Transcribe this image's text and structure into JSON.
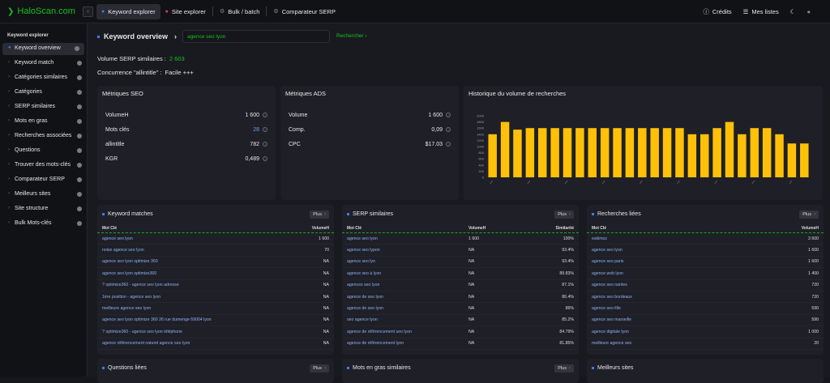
{
  "app": {
    "logo": "HaloScan.com"
  },
  "topnav": {
    "tabs": [
      {
        "label": "Keyword explorer",
        "active": true
      },
      {
        "label": "Site explorer"
      },
      {
        "label": "Bulk / batch"
      },
      {
        "label": "Comparateur SERP"
      }
    ],
    "credits": "Crédits",
    "lists": "Mes listes"
  },
  "sidebar": {
    "title": "Keyword explorer",
    "items": [
      {
        "label": "Keyword overview",
        "active": true
      },
      {
        "label": "Keyword match"
      },
      {
        "label": "Catégories similaires"
      },
      {
        "label": "Catégories"
      },
      {
        "label": "SERP similaires"
      },
      {
        "label": "Mots en gras"
      },
      {
        "label": "Recherches associées"
      },
      {
        "label": "Questions"
      },
      {
        "label": "Trouver des mots-clés"
      },
      {
        "label": "Comparateur SERP"
      },
      {
        "label": "Meilleurs sites"
      },
      {
        "label": "Site structure"
      },
      {
        "label": "Bulk Mots-clés"
      }
    ]
  },
  "header": {
    "title": "Keyword overview",
    "search_value": "agence seo lyon",
    "search_button": "Rechercher"
  },
  "summary": {
    "serp_label": "Volume SERP similaires :",
    "serp_value": "2 603",
    "comp_label": "Concurrence \"allintitle\" :",
    "comp_value": "Facile +++"
  },
  "seo": {
    "title": "Métriques SEO",
    "rows": [
      {
        "k": "VolumeH",
        "v": "1 600"
      },
      {
        "k": "Mots clés",
        "v": "28"
      },
      {
        "k": "allintitle",
        "v": "782"
      },
      {
        "k": "KGR",
        "v": "0,489"
      }
    ]
  },
  "ads": {
    "title": "Métriques ADS",
    "rows": [
      {
        "k": "Volume",
        "v": "1 600"
      },
      {
        "k": "Comp.",
        "v": "0,09"
      },
      {
        "k": "CPC",
        "v": "$17.03"
      }
    ]
  },
  "history": {
    "title": "Historique du volume de recherches"
  },
  "chart_data": {
    "type": "bar",
    "title": "Historique du volume de recherches",
    "ylim": [
      0,
      2000
    ],
    "yticks": [
      0,
      200,
      400,
      600,
      800,
      1000,
      1200,
      1400,
      1600,
      1800,
      2000
    ],
    "values": [
      1400,
      1800,
      1550,
      1600,
      1600,
      1600,
      1600,
      1600,
      1600,
      1600,
      1600,
      1600,
      1600,
      1600,
      1600,
      1600,
      1400,
      1400,
      1600,
      1800,
      1400,
      1600,
      1600,
      1400,
      1100,
      1100
    ],
    "color": "#ffc107"
  },
  "kw_matches": {
    "title": "Keyword matches",
    "plus": "Plus",
    "head": [
      "Mot Clé",
      "VolumeH"
    ],
    "rows": [
      [
        "agence seo lyon",
        "1 600"
      ],
      [
        "noise agence seo lyon",
        "70"
      ],
      [
        "agence seo lyon optimize 360",
        "NA"
      ],
      [
        "agence seo lyon optimize360",
        "NA"
      ],
      [
        "? optimize360 - agence seo lyon adresse",
        "NA"
      ],
      [
        "1ère position - agence seo lyon",
        "NA"
      ],
      [
        "meilleure agence seo lyon",
        "NA"
      ],
      [
        "agence seo lyon optimize 360 26 rue dumenge 69004 lyon",
        "NA"
      ],
      [
        "? optimize360 - agence seo lyon téléphone",
        "NA"
      ],
      [
        "agence référencement naturel agence seo lyon",
        "NA"
      ]
    ]
  },
  "serp_sim": {
    "title": "SERP similaires",
    "plus": "Plus",
    "head": [
      "Mot Clé",
      "VolumeH",
      "Similarité"
    ],
    "rows": [
      [
        "agence seo lyon",
        "1 600",
        "100%"
      ],
      [
        "agence seo lypon",
        "NA",
        "93.4%"
      ],
      [
        "agence seo lyo",
        "NA",
        "93.4%"
      ],
      [
        "agence seo à lyon",
        "NA",
        "89.83%"
      ],
      [
        "agences seo lyon",
        "NA",
        "87.1%"
      ],
      [
        "agence de seo lyon",
        "NA",
        "86.4%"
      ],
      [
        "agence de seo lyon",
        "NA",
        "86%"
      ],
      [
        "seo agence lyon",
        "NA",
        "85.2%"
      ],
      [
        "agence de référencement seo lyon",
        "NA",
        "84.79%"
      ],
      [
        "agence de référencement lyon",
        "NA",
        "81.85%"
      ]
    ]
  },
  "related": {
    "title": "Recherches liées",
    "plus": "Plus",
    "head": [
      "Mot Clé",
      "VolumeH"
    ],
    "rows": [
      [
        "eskimoz",
        "3 600"
      ],
      [
        "agence seo lyon",
        "1 600"
      ],
      [
        "agence seo paris",
        "1 600"
      ],
      [
        "agence web lyon",
        "1 400"
      ],
      [
        "agence seo nantes",
        "720"
      ],
      [
        "agence seo bordeaux",
        "720"
      ],
      [
        "agence seo lille",
        "590"
      ],
      [
        "agence seo marseille",
        "590"
      ],
      [
        "agence digitale lyon",
        "1 000"
      ],
      [
        "meilleure agence seo",
        "20"
      ]
    ]
  },
  "bottom": {
    "questions": "Questions liées",
    "bold": "Mots en gras similaires",
    "best": "Meilleurs sites",
    "plus": "Plus"
  }
}
